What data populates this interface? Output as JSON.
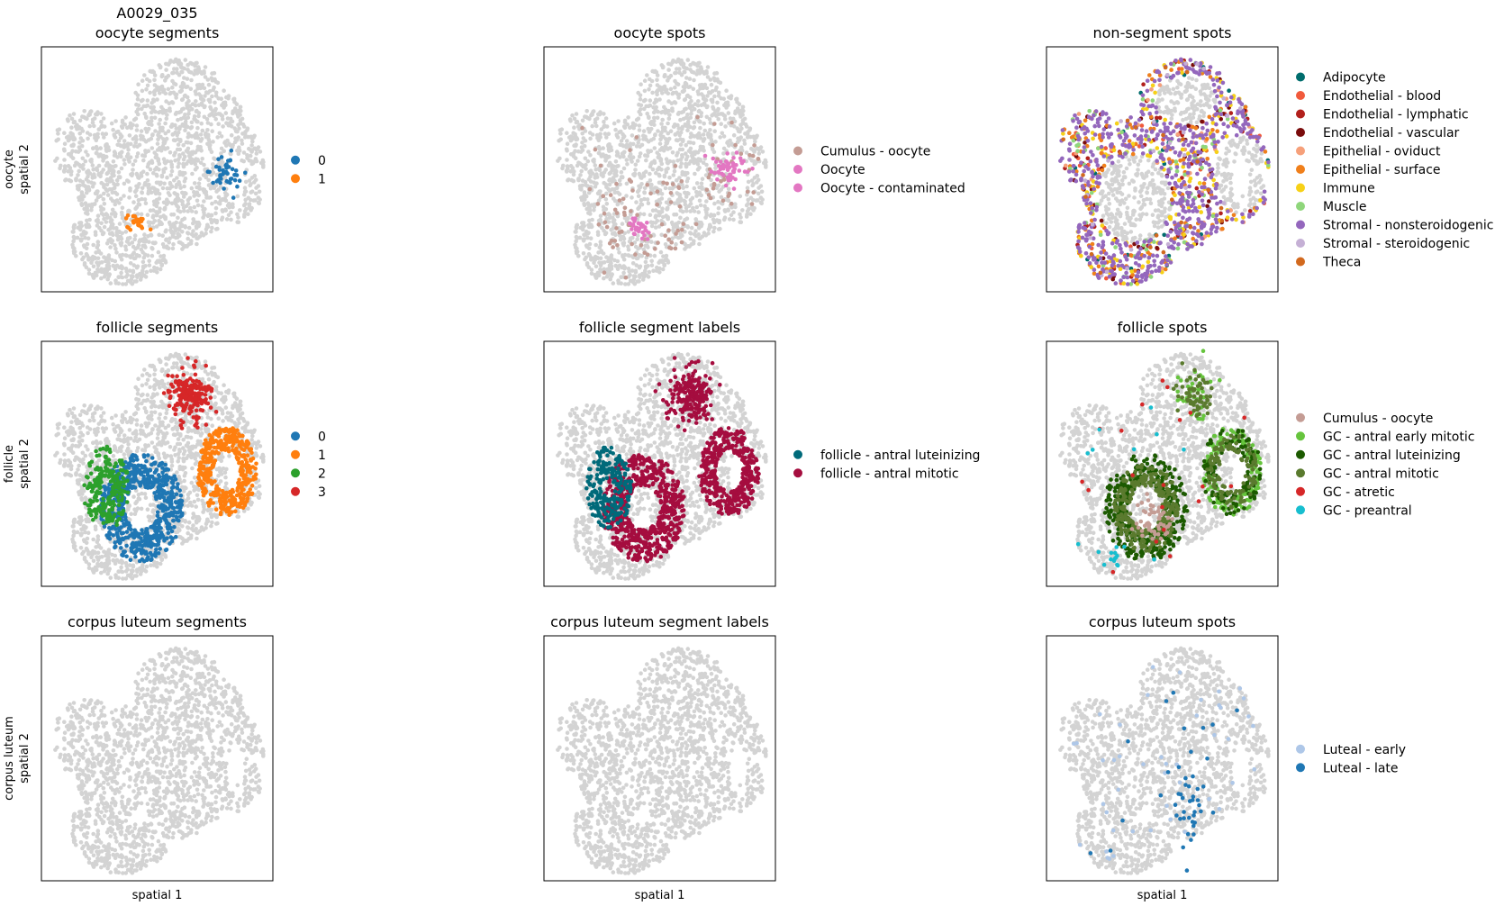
{
  "figure": {
    "row_ylabels": [
      [
        "oocyte",
        "spatial 2"
      ],
      [
        "follicle",
        "spatial 2"
      ],
      [
        "corpus luteum",
        "spatial 2"
      ]
    ],
    "xlabel": "spatial 1",
    "background_spot_color": "#d3d3d3"
  },
  "chart_data": [
    {
      "type": "scatter",
      "title": "A0029_035\noocyte segments",
      "legend": [
        {
          "label": "0",
          "color": "#1f77b4"
        },
        {
          "label": "1",
          "color": "#ff7f0e"
        }
      ],
      "legend_placement": "right",
      "highlight": [
        {
          "category": "0",
          "region": "right oocyte cluster"
        },
        {
          "category": "1",
          "region": "lower-left oocyte cluster"
        }
      ]
    },
    {
      "type": "scatter",
      "title": "oocyte spots",
      "legend": [
        {
          "label": "Cumulus - oocyte",
          "color": "#c49c94"
        },
        {
          "label": "Oocyte",
          "color": "#e377c2"
        },
        {
          "label": "Oocyte - contaminated",
          "color": "#e377c2"
        }
      ],
      "legend_placement": "right"
    },
    {
      "type": "scatter",
      "title": "non-segment spots",
      "legend": [
        {
          "label": "Adipocyte",
          "color": "#006d6d"
        },
        {
          "label": "Endothelial - blood",
          "color": "#f15a3c"
        },
        {
          "label": "Endothelial - lymphatic",
          "color": "#b2201c"
        },
        {
          "label": "Endothelial - vascular",
          "color": "#7a0c0c"
        },
        {
          "label": "Epithelial - oviduct",
          "color": "#f6a07a"
        },
        {
          "label": "Epithelial - surface",
          "color": "#f07f1b"
        },
        {
          "label": "Immune",
          "color": "#f7d117"
        },
        {
          "label": "Muscle",
          "color": "#8fd67b"
        },
        {
          "label": "Stromal - nonsteroidogenic",
          "color": "#9467bd"
        },
        {
          "label": "Stromal - steroidogenic",
          "color": "#c5b0d5"
        },
        {
          "label": "Theca",
          "color": "#d2691e"
        }
      ],
      "legend_placement": "right"
    },
    {
      "type": "scatter",
      "title": "follicle segments",
      "legend": [
        {
          "label": "0",
          "color": "#1f77b4"
        },
        {
          "label": "1",
          "color": "#ff7f0e"
        },
        {
          "label": "2",
          "color": "#2ca02c"
        },
        {
          "label": "3",
          "color": "#d62728"
        }
      ],
      "legend_placement": "right"
    },
    {
      "type": "scatter",
      "title": "follicle segment labels",
      "legend": [
        {
          "label": "follicle - antral luteinizing",
          "color": "#006a7a"
        },
        {
          "label": "follicle - antral mitotic",
          "color": "#a50d3f"
        }
      ],
      "legend_placement": "right"
    },
    {
      "type": "scatter",
      "title": "follicle spots",
      "legend": [
        {
          "label": "Cumulus - oocyte",
          "color": "#c49c94"
        },
        {
          "label": "GC - antral early mitotic",
          "color": "#66c43d"
        },
        {
          "label": "GC - antral luteinizing",
          "color": "#1c5a00"
        },
        {
          "label": "GC - antral mitotic",
          "color": "#5a7a2e"
        },
        {
          "label": "GC - atretic",
          "color": "#d62728"
        },
        {
          "label": "GC - preantral",
          "color": "#17becf"
        }
      ],
      "legend_placement": "right"
    },
    {
      "type": "scatter",
      "title": "corpus luteum segments",
      "legend": [],
      "legend_placement": "none"
    },
    {
      "type": "scatter",
      "title": "corpus luteum segment labels",
      "legend": [],
      "legend_placement": "none"
    },
    {
      "type": "scatter",
      "title": "corpus luteum spots",
      "legend": [
        {
          "label": "Luteal - early",
          "color": "#aec7e8"
        },
        {
          "label": "Luteal - late",
          "color": "#1f77b4"
        }
      ],
      "legend_placement": "right"
    }
  ]
}
